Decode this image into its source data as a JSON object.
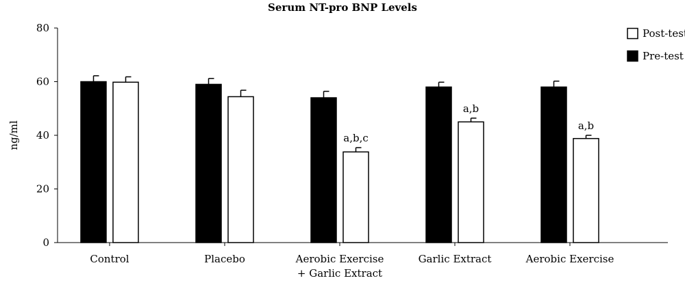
{
  "chart_data": {
    "type": "bar",
    "title": "Serum NT-pro BNP Levels",
    "xlabel": "",
    "ylabel": "ng/ml",
    "ylim": [
      0,
      80
    ],
    "yticks": [
      0,
      20,
      40,
      60,
      80
    ],
    "grid": false,
    "legend_position": "top-right",
    "categories": [
      [
        "Control"
      ],
      [
        "Placebo"
      ],
      [
        "Aerobic Exercise",
        "+ Garlic Extract"
      ],
      [
        "Garlic Extract"
      ],
      [
        "Aerobic Exercise"
      ]
    ],
    "series": [
      {
        "name": "Pre-test",
        "fill": "#000000",
        "values": [
          60,
          59,
          54,
          58,
          58
        ],
        "errors": [
          2.2,
          2.2,
          2.4,
          1.8,
          2.2
        ],
        "annotations": [
          "",
          "",
          "",
          "",
          ""
        ]
      },
      {
        "name": "Post-test",
        "fill": "#ffffff",
        "values": [
          59.8,
          54.4,
          33.8,
          45,
          38.8
        ],
        "errors": [
          2.0,
          2.4,
          1.6,
          1.4,
          1.2
        ],
        "annotations": [
          "",
          "",
          "a,b,c",
          "a,b",
          "a,b"
        ]
      }
    ],
    "legend_order": [
      "Post-test",
      "Pre-test"
    ]
  }
}
